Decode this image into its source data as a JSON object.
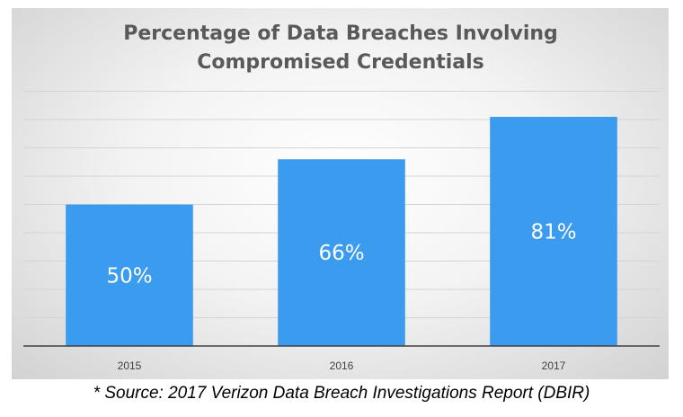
{
  "chart_data": {
    "type": "bar",
    "title": "Percentage of Data Breaches Involving Compromised Credentials",
    "title_lines": [
      "Percentage of Data Breaches Involving",
      "Compromised Credentials"
    ],
    "categories": [
      "2015",
      "2016",
      "2017"
    ],
    "values": [
      50,
      66,
      81
    ],
    "data_labels": [
      "50%",
      "66%",
      "81%"
    ],
    "ylim": [
      0,
      81
    ],
    "grid": true,
    "legend": "none",
    "bar_color": "#3b9bef"
  },
  "source_note": "* Source: 2017 Verizon Data Breach Investigations Report (DBIR)"
}
